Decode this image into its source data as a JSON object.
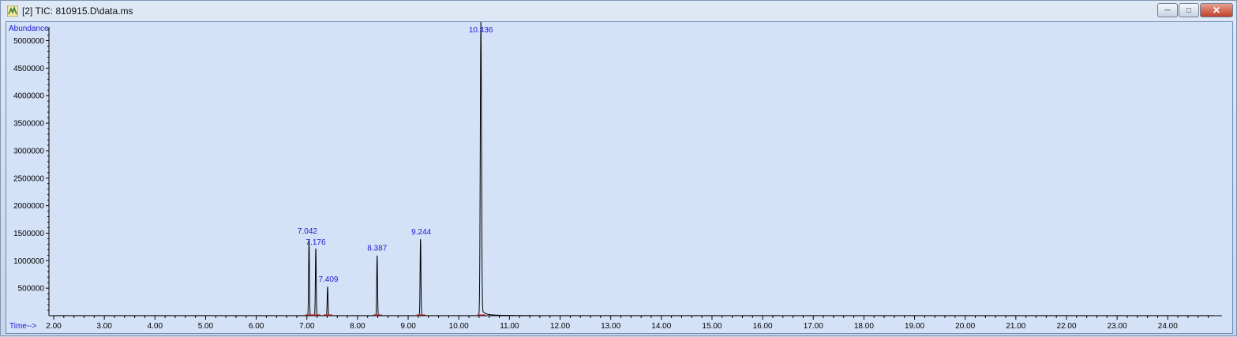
{
  "window": {
    "title": "[2] TIC: 810915.D\\data.ms",
    "icon": "chromatogram-app-icon",
    "controls": {
      "minimize": "minimize-icon",
      "maximize": "maximize-icon",
      "close": "close-icon"
    }
  },
  "chart_data": {
    "type": "line",
    "ylabel": "Abundance",
    "xlabel": "Time-->",
    "xlim": [
      1.9,
      25.0
    ],
    "ylim": [
      0,
      5300000
    ],
    "x_ticks": [
      "2.00",
      "3.00",
      "4.00",
      "5.00",
      "6.00",
      "7.00",
      "8.00",
      "9.00",
      "10.00",
      "11.00",
      "12.00",
      "13.00",
      "14.00",
      "15.00",
      "16.00",
      "17.00",
      "18.00",
      "19.00",
      "20.00",
      "21.00",
      "22.00",
      "23.00",
      "24.00"
    ],
    "y_ticks": [
      "500000",
      "1000000",
      "1500000",
      "2000000",
      "2500000",
      "3000000",
      "3500000",
      "4000000",
      "4500000",
      "5000000"
    ],
    "peaks": [
      {
        "label": "7.042",
        "rt": 7.042,
        "height": 1380000
      },
      {
        "label": "7.176",
        "rt": 7.176,
        "height": 1220000
      },
      {
        "label": "7.409",
        "rt": 7.409,
        "height": 520000
      },
      {
        "label": "8.387",
        "rt": 8.387,
        "height": 1080000
      },
      {
        "label": "9.244",
        "rt": 9.244,
        "height": 1390000
      },
      {
        "label": "10.436",
        "rt": 10.436,
        "height": 5250000
      }
    ],
    "grid": false,
    "colors": {
      "background": "#d4e2f8",
      "trace": "#000000",
      "labels": "#1a1acc",
      "baseline_marks": "#cc2222"
    }
  }
}
